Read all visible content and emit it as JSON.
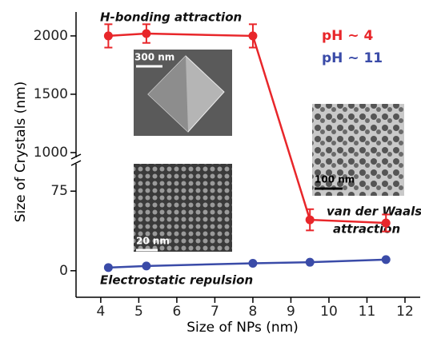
{
  "chart_data": {
    "type": "line",
    "x_label": "Size of NPs (nm)",
    "y_label": "Size of Crystals (nm)",
    "x": [
      4.2,
      5.2,
      8,
      9.5,
      11.5
    ],
    "series": [
      {
        "name": "pH ~ 4",
        "color": "#e8262a",
        "values": [
          2000,
          2020,
          2000,
          48,
          45
        ],
        "errors": [
          100,
          80,
          100,
          10,
          8
        ]
      },
      {
        "name": "pH ~ 11",
        "color": "#3a4ba8",
        "values": [
          3,
          4.5,
          7,
          8,
          10.5
        ]
      }
    ],
    "xlim": [
      3.35,
      12.4
    ],
    "xticks": [
      4,
      5,
      6,
      7,
      8,
      9,
      10,
      11,
      12
    ],
    "ylim_upper": [
      938,
      2205
    ],
    "yticks_upper": [
      1000,
      1500,
      2000
    ],
    "ylim_lower": [
      -25,
      97
    ],
    "yticks_lower": [
      0,
      75
    ],
    "annotations": [
      "H-bonding attraction",
      "van der Waals",
      "attraction",
      "Electrostatic repulsion"
    ],
    "scale_bars": [
      "300 nm",
      "20 nm",
      "100 nm"
    ]
  }
}
